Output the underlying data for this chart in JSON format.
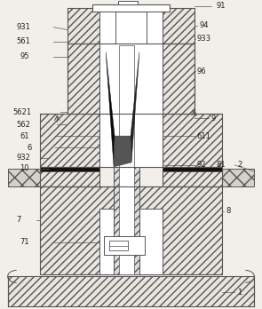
{
  "bg_color": "#f2efe9",
  "lc": "#555555",
  "dark": "#111111",
  "white": "#ffffff",
  "hatch_bg": "#e8e5df",
  "figsize": [
    2.95,
    3.48
  ],
  "dpi": 100
}
